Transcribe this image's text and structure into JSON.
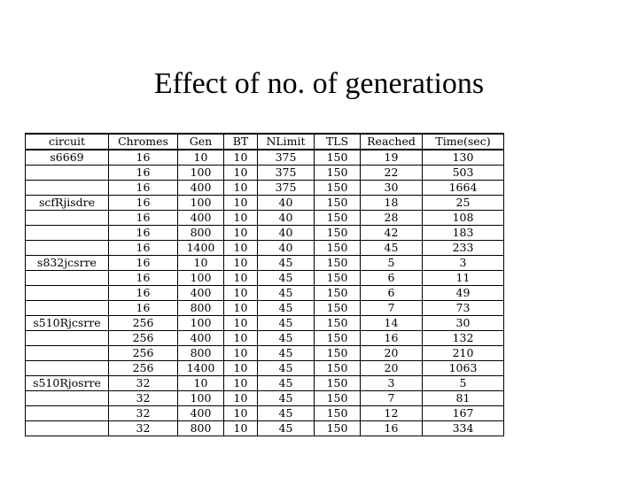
{
  "title": "Effect of no. of generations",
  "table": {
    "headers": [
      "circuit",
      "Chromes",
      "Gen",
      "BT",
      "NLimit",
      "TLS",
      "Reached",
      "Time(sec)"
    ],
    "rows": [
      [
        "s6669",
        "16",
        "10",
        "10",
        "375",
        "150",
        "19",
        "130"
      ],
      [
        "",
        "16",
        "100",
        "10",
        "375",
        "150",
        "22",
        "503"
      ],
      [
        "",
        "16",
        "400",
        "10",
        "375",
        "150",
        "30",
        "1664"
      ],
      [
        "scfRjisdre",
        "16",
        "100",
        "10",
        "40",
        "150",
        "18",
        "25"
      ],
      [
        "",
        "16",
        "400",
        "10",
        "40",
        "150",
        "28",
        "108"
      ],
      [
        "",
        "16",
        "800",
        "10",
        "40",
        "150",
        "42",
        "183"
      ],
      [
        "",
        "16",
        "1400",
        "10",
        "40",
        "150",
        "45",
        "233"
      ],
      [
        "s832jcsrre",
        "16",
        "10",
        "10",
        "45",
        "150",
        "5",
        "3"
      ],
      [
        "",
        "16",
        "100",
        "10",
        "45",
        "150",
        "6",
        "11"
      ],
      [
        "",
        "16",
        "400",
        "10",
        "45",
        "150",
        "6",
        "49"
      ],
      [
        "",
        "16",
        "800",
        "10",
        "45",
        "150",
        "7",
        "73"
      ],
      [
        "s510Rjcsrre",
        "256",
        "100",
        "10",
        "45",
        "150",
        "14",
        "30"
      ],
      [
        "",
        "256",
        "400",
        "10",
        "45",
        "150",
        "16",
        "132"
      ],
      [
        "",
        "256",
        "800",
        "10",
        "45",
        "150",
        "20",
        "210"
      ],
      [
        "",
        "256",
        "1400",
        "10",
        "45",
        "150",
        "20",
        "1063"
      ],
      [
        "s510Rjosrre",
        "32",
        "10",
        "10",
        "45",
        "150",
        "3",
        "5"
      ],
      [
        "",
        "32",
        "100",
        "10",
        "45",
        "150",
        "7",
        "81"
      ],
      [
        "",
        "32",
        "400",
        "10",
        "45",
        "150",
        "12",
        "167"
      ],
      [
        "",
        "32",
        "800",
        "10",
        "45",
        "150",
        "16",
        "334"
      ]
    ]
  }
}
